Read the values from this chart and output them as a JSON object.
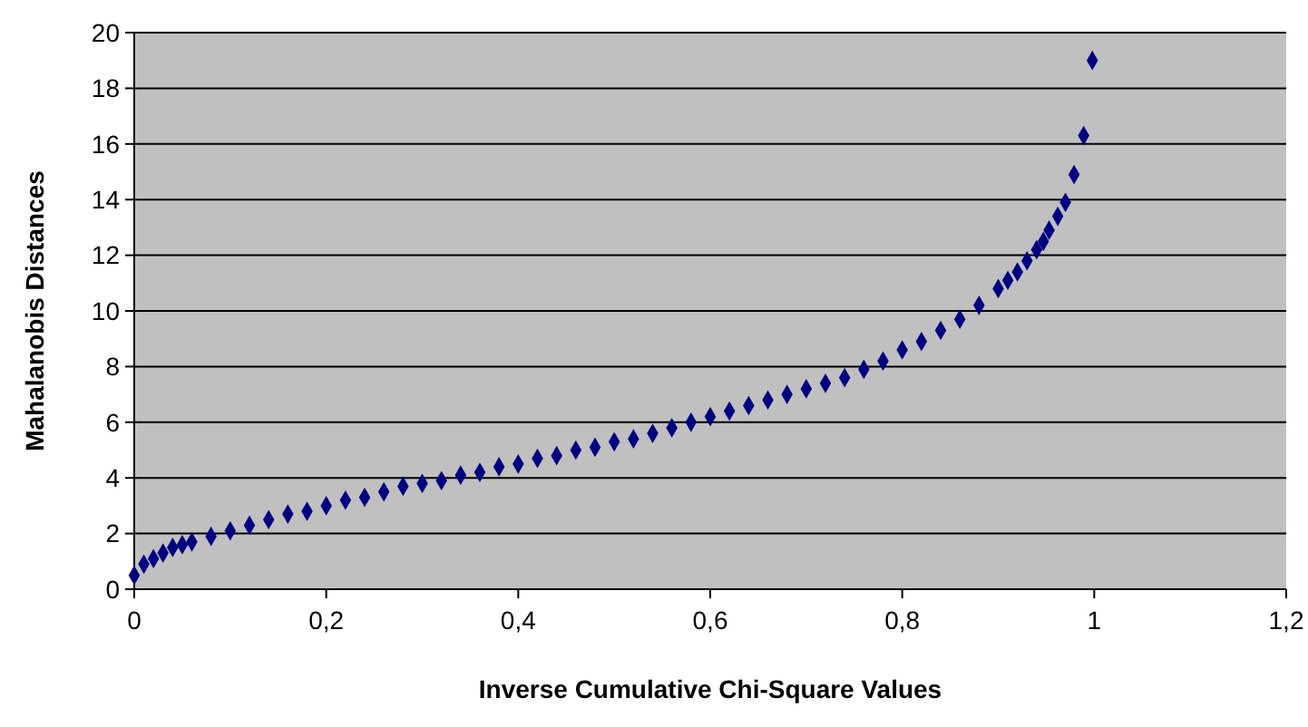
{
  "chart_data": {
    "type": "scatter",
    "xlabel": "Inverse Cumulative Chi-Square Values",
    "ylabel": "Mahalanobis Distances",
    "x": [
      0,
      0.01,
      0.02,
      0.03,
      0.04,
      0.05,
      0.06,
      0.08,
      0.1,
      0.12,
      0.14,
      0.16,
      0.18,
      0.2,
      0.22,
      0.24,
      0.26,
      0.28,
      0.3,
      0.32,
      0.34,
      0.36,
      0.38,
      0.4,
      0.42,
      0.44,
      0.46,
      0.48,
      0.5,
      0.52,
      0.54,
      0.56,
      0.58,
      0.6,
      0.62,
      0.64,
      0.66,
      0.68,
      0.7,
      0.72,
      0.74,
      0.76,
      0.78,
      0.8,
      0.82,
      0.84,
      0.86,
      0.88,
      0.9,
      0.91,
      0.92,
      0.93,
      0.94,
      0.947,
      0.953,
      0.962,
      0.97,
      0.979,
      0.989,
      0.998
    ],
    "series": [
      {
        "color": "#000080",
        "values": [
          0.5,
          0.9,
          1.1,
          1.3,
          1.5,
          1.6,
          1.7,
          1.9,
          2.1,
          2.3,
          2.5,
          2.7,
          2.8,
          3.0,
          3.2,
          3.3,
          3.5,
          3.7,
          3.8,
          3.9,
          4.1,
          4.2,
          4.4,
          4.5,
          4.7,
          4.8,
          5.0,
          5.1,
          5.3,
          5.4,
          5.6,
          5.8,
          6.0,
          6.2,
          6.4,
          6.6,
          6.8,
          7.0,
          7.2,
          7.4,
          7.6,
          7.9,
          8.2,
          8.6,
          8.9,
          9.3,
          9.7,
          10.2,
          10.8,
          11.1,
          11.4,
          11.8,
          12.2,
          12.5,
          12.9,
          13.4,
          13.9,
          14.9,
          16.3,
          19.0
        ]
      }
    ],
    "xlim": [
      0,
      1.2
    ],
    "ylim": [
      0,
      20
    ],
    "xticks": [
      0,
      {
        "value": 0.2,
        "label": "0,2"
      },
      {
        "value": 0.4,
        "label": "0,4"
      },
      {
        "value": 0.6,
        "label": "0,6"
      },
      {
        "value": 0.8,
        "label": "0,8"
      },
      1,
      {
        "value": 1.2,
        "label": "1,2"
      }
    ],
    "yticks": [
      0,
      2,
      4,
      6,
      8,
      10,
      12,
      14,
      16,
      18,
      20
    ],
    "grid": "y",
    "marker": "diamond"
  }
}
